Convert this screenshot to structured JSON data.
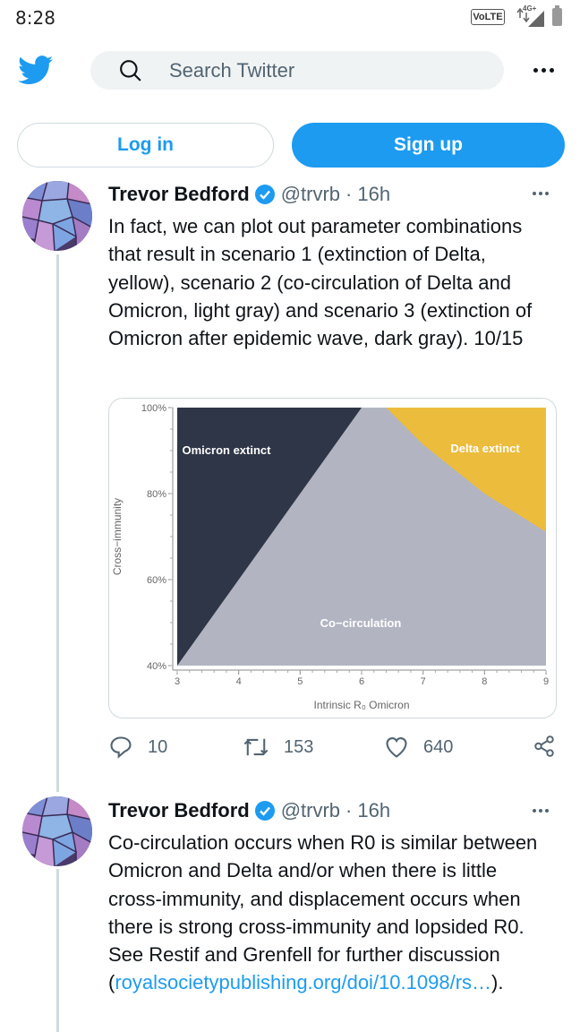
{
  "status_bar": {
    "time": "8:28",
    "volte": "VoLTE",
    "network": "4G+"
  },
  "header": {
    "logo": "twitter-bird-icon",
    "search_placeholder": "Search Twitter",
    "more": "more-icon"
  },
  "auth": {
    "login_label": "Log in",
    "signup_label": "Sign up"
  },
  "tweets": [
    {
      "author": "Trevor Bedford",
      "handle": "@trvrb",
      "separator": "·",
      "age": "16h",
      "text": "In fact, we can plot out parameter combinations that result in scenario 1 (extinction of Delta, yellow), scenario 2 (co-circulation of Delta and Omicron, light gray) and scenario 3 (extinction of Omicron after epidemic wave, dark gray). 10/15",
      "replies": "10",
      "retweets": "153",
      "likes": "640"
    },
    {
      "author": "Trevor Bedford",
      "handle": "@trvrb",
      "separator": "·",
      "age": "16h",
      "text": "Co-circulation occurs when R0 is similar between Omicron and Delta and/or when there is little cross-immunity, and displacement occurs when there is strong cross-immunity and lopsided R0. See Restif and Grenfell for further discussion",
      "link_open": "(",
      "link_text": "royalsocietypublishing.org/doi/10.1098/rs…",
      "link_close": ")."
    }
  ],
  "chart_data": {
    "type": "area",
    "xlabel": "Intrinsic R₀ Omicron",
    "ylabel": "Cross−immunity",
    "x_ticks": [
      "3",
      "4",
      "5",
      "6",
      "7",
      "8",
      "9"
    ],
    "y_ticks": [
      "40%",
      "60%",
      "80%",
      "100%"
    ],
    "xlim": [
      3,
      9
    ],
    "ylim": [
      40,
      100
    ],
    "regions": [
      {
        "name": "Omicron extinct",
        "color": "#2f3647",
        "boundary_x": [
          3,
          6
        ],
        "boundary_y": [
          40,
          100
        ]
      },
      {
        "name": "Co−circulation",
        "color": "#b2b5c1"
      },
      {
        "name": "Delta extinct",
        "color": "#ecbc3d",
        "boundary_x": [
          6.4,
          7,
          8,
          9
        ],
        "boundary_y": [
          100,
          91.4,
          80,
          71.1
        ]
      }
    ]
  }
}
